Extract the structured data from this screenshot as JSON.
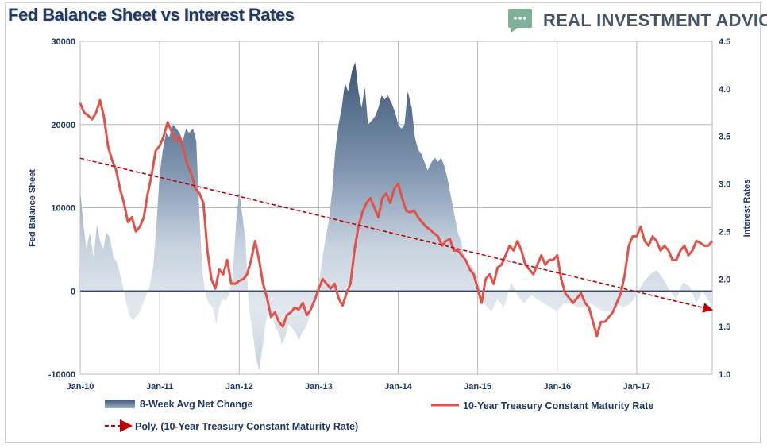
{
  "header": {
    "title": "Fed Balance Sheet vs Interest Rates",
    "brand": "REAL INVESTMENT ADVICE",
    "brand_icon": "speech-bubble-icon"
  },
  "colors": {
    "area_dark": "#3d5675",
    "area_light": "#d6dfe8",
    "rate_line": "#e0524a",
    "trend_line": "#c00000",
    "text": "#1f3864",
    "grid": "#b9b9b9",
    "brand_green": "#7fb19a"
  },
  "chart_data": {
    "type": "area",
    "title": "Fed Balance Sheet vs Interest Rates",
    "ylabel": "Fed Balance Sheet",
    "y2label": "Interest Rates",
    "ylim": [
      -10000,
      30000
    ],
    "yticks": [
      "30000",
      "20000",
      "10000",
      "0",
      "-10000"
    ],
    "y2lim": [
      1.0,
      4.5
    ],
    "y2ticks": [
      "4.5",
      "4.0",
      "3.5",
      "3.0",
      "2.5",
      "2.0",
      "1.5",
      "1.0"
    ],
    "xlim": [
      2010.0,
      2017.95
    ],
    "xticks": [
      "Jan-10",
      "Jan-11",
      "Jan-12",
      "Jan-13",
      "Jan-14",
      "Jan-15",
      "Jan-16",
      "Jan-17"
    ],
    "grid": true,
    "legend_position": "bottom",
    "series": [
      {
        "name": "8-Week Avg Net Change",
        "axis": "left",
        "x": [
          2010.0,
          2010.04,
          2010.08,
          2010.12,
          2010.17,
          2010.21,
          2010.25,
          2010.29,
          2010.33,
          2010.37,
          2010.42,
          2010.46,
          2010.5,
          2010.54,
          2010.58,
          2010.62,
          2010.67,
          2010.71,
          2010.75,
          2010.79,
          2010.83,
          2010.87,
          2010.92,
          2010.96,
          2011.0,
          2011.04,
          2011.08,
          2011.12,
          2011.17,
          2011.21,
          2011.25,
          2011.29,
          2011.33,
          2011.37,
          2011.42,
          2011.46,
          2011.5,
          2011.54,
          2011.58,
          2011.62,
          2011.67,
          2011.71,
          2011.75,
          2011.79,
          2011.83,
          2011.87,
          2011.92,
          2011.96,
          2012.0,
          2012.04,
          2012.08,
          2012.12,
          2012.17,
          2012.21,
          2012.25,
          2012.29,
          2012.33,
          2012.37,
          2012.42,
          2012.46,
          2012.5,
          2012.54,
          2012.58,
          2012.62,
          2012.67,
          2012.71,
          2012.75,
          2012.79,
          2012.83,
          2012.87,
          2012.92,
          2012.96,
          2013.0,
          2013.04,
          2013.08,
          2013.12,
          2013.17,
          2013.21,
          2013.25,
          2013.29,
          2013.33,
          2013.37,
          2013.42,
          2013.46,
          2013.5,
          2013.54,
          2013.58,
          2013.62,
          2013.67,
          2013.71,
          2013.75,
          2013.79,
          2013.83,
          2013.87,
          2013.92,
          2013.96,
          2014.0,
          2014.04,
          2014.08,
          2014.12,
          2014.17,
          2014.21,
          2014.25,
          2014.29,
          2014.33,
          2014.37,
          2014.42,
          2014.46,
          2014.5,
          2014.54,
          2014.58,
          2014.62,
          2014.67,
          2014.71,
          2014.75,
          2014.79,
          2014.83,
          2014.87,
          2014.92,
          2014.96,
          2015.0,
          2015.08,
          2015.17,
          2015.25,
          2015.33,
          2015.42,
          2015.5,
          2015.58,
          2015.67,
          2015.75,
          2015.83,
          2015.92,
          2016.0,
          2016.08,
          2016.17,
          2016.25,
          2016.33,
          2016.42,
          2016.5,
          2016.58,
          2016.67,
          2016.75,
          2016.83,
          2016.92,
          2017.0,
          2017.08,
          2017.17,
          2017.25,
          2017.33,
          2017.42,
          2017.5,
          2017.58,
          2017.67,
          2017.75,
          2017.83,
          2017.92,
          2017.95
        ],
        "values": [
          12000,
          8000,
          5000,
          7000,
          4000,
          8000,
          6000,
          5000,
          7000,
          6500,
          4000,
          3500,
          2000,
          500,
          -1500,
          -3000,
          -3500,
          -3000,
          -2500,
          -1500,
          -500,
          500,
          3000,
          8000,
          14000,
          17000,
          19000,
          18500,
          20000,
          19500,
          19000,
          18000,
          19500,
          19000,
          19500,
          18000,
          9000,
          2000,
          -500,
          -1500,
          -2000,
          -4000,
          -2000,
          -1000,
          -1200,
          -500,
          2000,
          8000,
          12000,
          9000,
          6000,
          -2000,
          -5000,
          -8000,
          -9500,
          -7000,
          -4000,
          -2000,
          -3000,
          -4500,
          -5000,
          -6500,
          -5500,
          -4000,
          -4500,
          -5000,
          -6000,
          -5000,
          -4500,
          -3500,
          -2000,
          -1000,
          1000,
          3500,
          6000,
          8000,
          12000,
          17000,
          20000,
          22000,
          25000,
          24000,
          26500,
          27500,
          24000,
          22000,
          24500,
          20000,
          20500,
          21000,
          22000,
          23500,
          23000,
          23500,
          22500,
          21500,
          20000,
          19500,
          20000,
          24000,
          22000,
          18500,
          17000,
          16500,
          15500,
          14500,
          15500,
          16000,
          15500,
          16000,
          15000,
          13500,
          11000,
          9000,
          7000,
          6000,
          4000,
          3500,
          3000,
          2500,
          1500,
          -1500,
          -2500,
          -1000,
          -2000,
          1000,
          -500,
          -1500,
          -500,
          -1000,
          -1500,
          -2000,
          -2500,
          -1500,
          -1500,
          -2000,
          -2000,
          -1500,
          -2000,
          -2500,
          -2500,
          -1500,
          -2000,
          -1500,
          -500,
          1000,
          2000,
          2500,
          1500,
          0,
          -1000,
          1000,
          500,
          -1500,
          0,
          -1500,
          -1500
        ]
      },
      {
        "name": "10-Year Treasury Constant Maturity Rate",
        "axis": "right",
        "x": [
          2010.0,
          2010.05,
          2010.1,
          2010.15,
          2010.2,
          2010.25,
          2010.3,
          2010.35,
          2010.4,
          2010.45,
          2010.5,
          2010.55,
          2010.6,
          2010.65,
          2010.7,
          2010.75,
          2010.8,
          2010.85,
          2010.9,
          2010.95,
          2011.0,
          2011.05,
          2011.1,
          2011.15,
          2011.2,
          2011.25,
          2011.3,
          2011.35,
          2011.4,
          2011.45,
          2011.5,
          2011.55,
          2011.6,
          2011.65,
          2011.7,
          2011.75,
          2011.8,
          2011.85,
          2011.9,
          2011.95,
          2012.0,
          2012.05,
          2012.1,
          2012.15,
          2012.2,
          2012.25,
          2012.3,
          2012.35,
          2012.4,
          2012.45,
          2012.5,
          2012.55,
          2012.6,
          2012.65,
          2012.7,
          2012.75,
          2012.8,
          2012.85,
          2012.9,
          2012.95,
          2013.0,
          2013.05,
          2013.1,
          2013.15,
          2013.2,
          2013.25,
          2013.3,
          2013.35,
          2013.4,
          2013.45,
          2013.5,
          2013.55,
          2013.6,
          2013.65,
          2013.7,
          2013.75,
          2013.8,
          2013.85,
          2013.9,
          2013.95,
          2014.0,
          2014.05,
          2014.1,
          2014.15,
          2014.2,
          2014.25,
          2014.3,
          2014.35,
          2014.4,
          2014.45,
          2014.5,
          2014.55,
          2014.6,
          2014.65,
          2014.7,
          2014.75,
          2014.8,
          2014.85,
          2014.9,
          2014.95,
          2015.0,
          2015.05,
          2015.1,
          2015.15,
          2015.2,
          2015.25,
          2015.3,
          2015.35,
          2015.4,
          2015.45,
          2015.5,
          2015.55,
          2015.6,
          2015.65,
          2015.7,
          2015.75,
          2015.8,
          2015.85,
          2015.9,
          2015.95,
          2016.0,
          2016.05,
          2016.1,
          2016.15,
          2016.2,
          2016.25,
          2016.3,
          2016.35,
          2016.4,
          2016.45,
          2016.5,
          2016.55,
          2016.6,
          2016.65,
          2016.7,
          2016.75,
          2016.8,
          2016.85,
          2016.9,
          2016.95,
          2017.0,
          2017.05,
          2017.1,
          2017.15,
          2017.2,
          2017.25,
          2017.3,
          2017.35,
          2017.4,
          2017.45,
          2017.5,
          2017.55,
          2017.6,
          2017.65,
          2017.7,
          2017.75,
          2017.8,
          2017.85,
          2017.9,
          2017.95
        ],
        "values": [
          3.85,
          3.75,
          3.72,
          3.68,
          3.75,
          3.88,
          3.7,
          3.4,
          3.25,
          3.15,
          2.95,
          2.8,
          2.6,
          2.65,
          2.5,
          2.55,
          2.65,
          2.9,
          3.1,
          3.35,
          3.4,
          3.5,
          3.65,
          3.55,
          3.45,
          3.5,
          3.35,
          3.2,
          3.1,
          2.95,
          2.9,
          2.8,
          2.3,
          2.0,
          1.9,
          2.1,
          2.05,
          2.2,
          1.95,
          1.95,
          1.98,
          2.0,
          2.05,
          2.2,
          2.4,
          2.2,
          1.95,
          1.8,
          1.6,
          1.65,
          1.55,
          1.5,
          1.62,
          1.65,
          1.7,
          1.68,
          1.75,
          1.62,
          1.68,
          1.78,
          1.9,
          2.0,
          1.95,
          1.9,
          1.95,
          1.8,
          1.72,
          1.85,
          1.95,
          2.3,
          2.55,
          2.7,
          2.8,
          2.85,
          2.75,
          2.65,
          2.85,
          2.9,
          2.8,
          2.95,
          3.0,
          2.85,
          2.72,
          2.7,
          2.72,
          2.65,
          2.6,
          2.55,
          2.52,
          2.48,
          2.45,
          2.35,
          2.4,
          2.42,
          2.3,
          2.3,
          2.25,
          2.2,
          2.1,
          2.05,
          1.9,
          1.75,
          2.0,
          2.05,
          1.95,
          2.12,
          2.15,
          2.25,
          2.35,
          2.3,
          2.4,
          2.3,
          2.15,
          2.1,
          2.05,
          2.15,
          2.25,
          2.15,
          2.2,
          2.2,
          2.25,
          2.0,
          1.85,
          1.8,
          1.75,
          1.8,
          1.85,
          1.75,
          1.7,
          1.55,
          1.4,
          1.55,
          1.55,
          1.6,
          1.65,
          1.75,
          1.85,
          2.05,
          2.35,
          2.45,
          2.45,
          2.55,
          2.4,
          2.35,
          2.45,
          2.4,
          2.3,
          2.35,
          2.3,
          2.2,
          2.2,
          2.3,
          2.35,
          2.25,
          2.3,
          2.4,
          2.38,
          2.35,
          2.35,
          2.4
        ]
      },
      {
        "name": "Poly. (10-Year Treasury Constant Maturity Rate)",
        "axis": "right",
        "x": [
          2010.0,
          2017.95
        ],
        "values": [
          3.27,
          1.68
        ]
      }
    ]
  }
}
